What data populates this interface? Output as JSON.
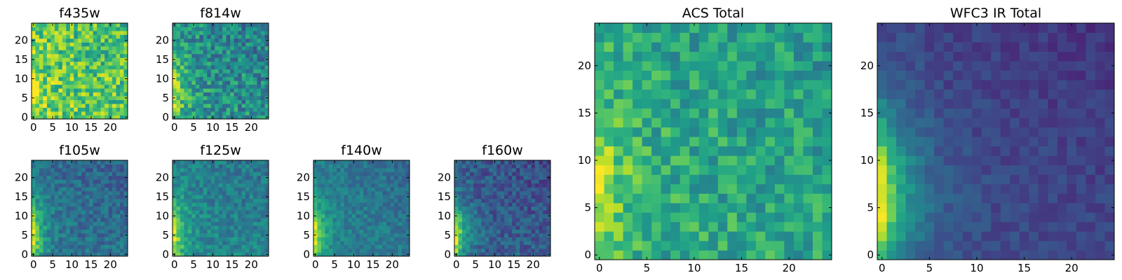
{
  "figure": {
    "description_free": true
  },
  "colormap": {
    "name": "viridis",
    "stops": [
      "#440154",
      "#482878",
      "#3e4989",
      "#31688e",
      "#26828e",
      "#1f9e89",
      "#35b779",
      "#6ece58",
      "#b5de2b",
      "#fde725"
    ]
  },
  "chart_data": [
    {
      "id": "f435w",
      "type": "heatmap",
      "title": "f435w",
      "grid_size": 25,
      "xticks": [
        "0",
        "5",
        "10",
        "15",
        "20"
      ],
      "yticks": [
        "0",
        "5",
        "10",
        "15",
        "20"
      ],
      "tick_values": [
        0,
        5,
        10,
        15,
        20
      ],
      "xlim": [
        -0.5,
        24.5
      ],
      "ylim": [
        -0.5,
        24.5
      ],
      "field": {
        "base": 0.75,
        "left_bump": 0.2,
        "left_scale": 3.0,
        "center_y": 5,
        "noise": 0.22,
        "seed": 11
      }
    },
    {
      "id": "f814w",
      "type": "heatmap",
      "title": "f814w",
      "grid_size": 25,
      "xticks": [
        "0",
        "5",
        "10",
        "15",
        "20"
      ],
      "yticks": [
        "0",
        "5",
        "10",
        "15",
        "20"
      ],
      "tick_values": [
        0,
        5,
        10,
        15,
        20
      ],
      "xlim": [
        -0.5,
        24.5
      ],
      "ylim": [
        -0.5,
        24.5
      ],
      "field": {
        "base": 0.5,
        "left_bump": 0.45,
        "left_scale": 3.0,
        "center_y": 7,
        "noise": 0.2,
        "seed": 23
      }
    },
    {
      "id": "f105w",
      "type": "heatmap",
      "title": "f105w",
      "grid_size": 25,
      "xticks": [
        "0",
        "5",
        "10",
        "15",
        "20"
      ],
      "yticks": [
        "0",
        "5",
        "10",
        "15",
        "20"
      ],
      "tick_values": [
        0,
        5,
        10,
        15,
        20
      ],
      "xlim": [
        -0.5,
        24.5
      ],
      "ylim": [
        -0.5,
        24.5
      ],
      "field": {
        "base": 0.38,
        "left_bump": 0.55,
        "left_scale": 2.5,
        "center_y": 5,
        "noise": 0.12,
        "seed": 37
      }
    },
    {
      "id": "f125w",
      "type": "heatmap",
      "title": "f125w",
      "grid_size": 25,
      "xticks": [
        "0",
        "5",
        "10",
        "15",
        "20"
      ],
      "yticks": [
        "0",
        "5",
        "10",
        "15",
        "20"
      ],
      "tick_values": [
        0,
        5,
        10,
        15,
        20
      ],
      "xlim": [
        -0.5,
        24.5
      ],
      "ylim": [
        -0.5,
        24.5
      ],
      "field": {
        "base": 0.45,
        "left_bump": 0.5,
        "left_scale": 2.5,
        "center_y": 5,
        "noise": 0.12,
        "seed": 41
      }
    },
    {
      "id": "f140w",
      "type": "heatmap",
      "title": "f140w",
      "grid_size": 25,
      "xticks": [
        "0",
        "5",
        "10",
        "15",
        "20"
      ],
      "yticks": [
        "0",
        "5",
        "10",
        "15",
        "20"
      ],
      "tick_values": [
        0,
        5,
        10,
        15,
        20
      ],
      "xlim": [
        -0.5,
        24.5
      ],
      "ylim": [
        -0.5,
        24.5
      ],
      "field": {
        "base": 0.42,
        "left_bump": 0.5,
        "left_scale": 2.5,
        "center_y": 5,
        "noise": 0.1,
        "seed": 53
      }
    },
    {
      "id": "f160w",
      "type": "heatmap",
      "title": "f160w",
      "grid_size": 25,
      "xticks": [
        "0",
        "5",
        "10",
        "15",
        "20"
      ],
      "yticks": [
        "0",
        "5",
        "10",
        "15",
        "20"
      ],
      "tick_values": [
        0,
        5,
        10,
        15,
        20
      ],
      "xlim": [
        -0.5,
        24.5
      ],
      "ylim": [
        -0.5,
        24.5
      ],
      "field": {
        "base": 0.3,
        "left_bump": 0.65,
        "left_scale": 2.5,
        "center_y": 5,
        "noise": 0.12,
        "seed": 67
      }
    },
    {
      "id": "acs_total",
      "type": "heatmap",
      "title": "ACS Total",
      "grid_size": 25,
      "xticks": [
        "0",
        "5",
        "10",
        "15",
        "20"
      ],
      "yticks": [
        "0",
        "5",
        "10",
        "15",
        "20"
      ],
      "tick_values": [
        0,
        5,
        10,
        15,
        20
      ],
      "xlim": [
        -0.5,
        24.5
      ],
      "ylim": [
        -0.5,
        24.5
      ],
      "field": {
        "base": 0.6,
        "left_bump": 0.35,
        "left_scale": 3.0,
        "center_y": 7,
        "noise": 0.16,
        "seed": 79
      }
    },
    {
      "id": "wfc3_ir_total",
      "type": "heatmap",
      "title": "WFC3 IR Total",
      "grid_size": 25,
      "xticks": [
        "0",
        "5",
        "10",
        "15",
        "20"
      ],
      "yticks": [
        "0",
        "5",
        "10",
        "15",
        "20"
      ],
      "tick_values": [
        0,
        5,
        10,
        15,
        20
      ],
      "xlim": [
        -0.5,
        24.5
      ],
      "ylim": [
        -0.5,
        24.5
      ],
      "field": {
        "base": 0.22,
        "left_bump": 0.75,
        "left_scale": 3.0,
        "center_y": 6,
        "noise": 0.06,
        "seed": 97
      }
    }
  ]
}
